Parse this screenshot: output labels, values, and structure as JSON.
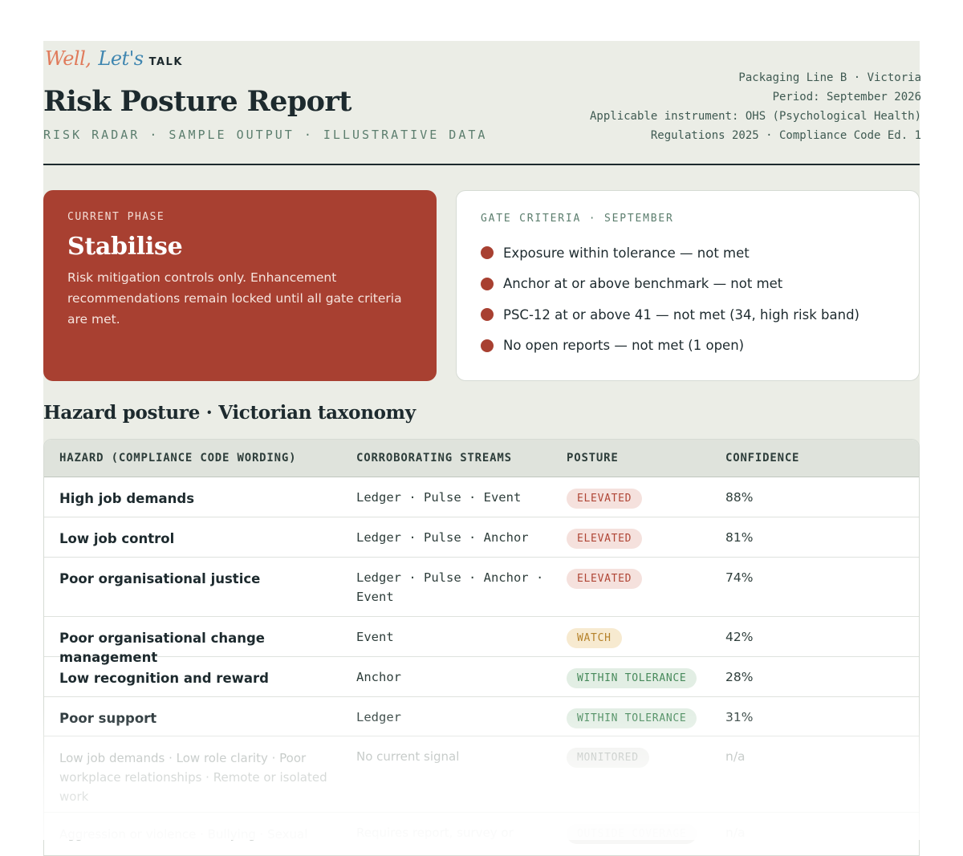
{
  "brand": {
    "word1": "Well,",
    "word2": "Let's",
    "word3": "TALK"
  },
  "header": {
    "title": "Risk Posture Report",
    "subtitle": "RISK RADAR · SAMPLE OUTPUT · ILLUSTRATIVE DATA",
    "meta_line1": "Packaging Line B · Victoria",
    "meta_line2": "Period: September 2026",
    "meta_line3": "Applicable instrument: OHS (Psychological Health)",
    "meta_line4": "Regulations 2025 · Compliance Code Ed. 1"
  },
  "phase": {
    "kicker": "CURRENT PHASE",
    "name": "Stabilise",
    "description": "Risk mitigation controls only. Enhancement recommendations remain locked until all gate criteria are met.",
    "color": "#a84031"
  },
  "gate": {
    "kicker": "GATE CRITERIA · SEPTEMBER",
    "items": [
      {
        "label": "Exposure within tolerance — not met"
      },
      {
        "label": "Anchor at or above benchmark — not met"
      },
      {
        "label": "PSC-12 at or above 41 — not met (34, high risk band)"
      },
      {
        "label": "No open reports — not met (1 open)"
      }
    ],
    "status_color": "#a84031"
  },
  "section_title": "Hazard posture · Victorian taxonomy",
  "table": {
    "headers": {
      "hazard": "HAZARD (COMPLIANCE CODE WORDING)",
      "streams": "CORROBORATING STREAMS",
      "posture": "POSTURE",
      "confidence": "CONFIDENCE"
    },
    "rows": [
      {
        "hazard": "High job demands",
        "streams": "Ledger · Pulse · Event",
        "posture": "ELEVATED",
        "confidence": "88%"
      },
      {
        "hazard": "Low job control",
        "streams": "Ledger · Pulse · Anchor",
        "posture": "ELEVATED",
        "confidence": "81%"
      },
      {
        "hazard": "Poor organisational justice",
        "streams": "Ledger · Pulse · Anchor · Event",
        "posture": "ELEVATED",
        "confidence": "74%"
      },
      {
        "hazard": "Poor organisational change management",
        "streams": "Event",
        "posture": "WATCH",
        "confidence": "42%"
      },
      {
        "hazard": "Low recognition and reward",
        "streams": "Anchor",
        "posture": "WITHIN TOLERANCE",
        "confidence": "28%"
      },
      {
        "hazard": "Poor support",
        "streams": "Ledger",
        "posture": "WITHIN TOLERANCE",
        "confidence": "31%"
      },
      {
        "hazard": "Low job demands · Low role clarity · Poor workplace relationships · Remote or isolated work",
        "streams": "No current signal",
        "posture": "MONITORED",
        "confidence": "n/a"
      },
      {
        "hazard": "Aggression or violence · Bullying · Sexual",
        "streams": "Requires report, survey or",
        "posture": "OUTSIDE COVERAGE",
        "confidence": "n/a"
      }
    ]
  }
}
